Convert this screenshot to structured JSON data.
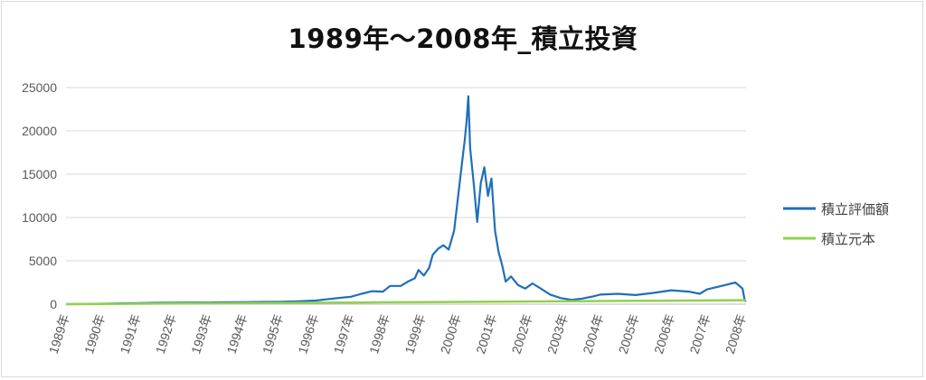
{
  "chart_data": {
    "type": "line",
    "title": "1989年～2008年_積立投資",
    "xlabel": "",
    "ylabel": "",
    "ylim": [
      0,
      25000
    ],
    "yticks": [
      "0",
      "5000",
      "10000",
      "15000",
      "20000",
      "25000"
    ],
    "xlim": [
      1989,
      2008.1
    ],
    "xticks": [
      "1989年",
      "1990年",
      "1991年",
      "1992年",
      "1993年",
      "1994年",
      "1995年",
      "1996年",
      "1997年",
      "1998年",
      "1999年",
      "2000年",
      "2001年",
      "2002年",
      "2003年",
      "2004年",
      "2005年",
      "2006年",
      "2007年",
      "2008年"
    ],
    "grid": true,
    "legend": "right",
    "series": [
      {
        "name": "積立評価額",
        "color": "#1f6fba",
        "points": [
          [
            1989.0,
            0
          ],
          [
            1989.5,
            20
          ],
          [
            1990.0,
            50
          ],
          [
            1990.5,
            90
          ],
          [
            1991.0,
            130
          ],
          [
            1991.5,
            160
          ],
          [
            1992.0,
            180
          ],
          [
            1992.5,
            185
          ],
          [
            1993.0,
            190
          ],
          [
            1993.5,
            215
          ],
          [
            1994.0,
            240
          ],
          [
            1994.5,
            260
          ],
          [
            1995.0,
            270
          ],
          [
            1995.5,
            320
          ],
          [
            1996.0,
            420
          ],
          [
            1996.5,
            650
          ],
          [
            1997.0,
            850
          ],
          [
            1997.3,
            1200
          ],
          [
            1997.6,
            1500
          ],
          [
            1997.9,
            1450
          ],
          [
            1998.1,
            2100
          ],
          [
            1998.4,
            2100
          ],
          [
            1998.6,
            2600
          ],
          [
            1998.8,
            3000
          ],
          [
            1998.9,
            3950
          ],
          [
            1999.05,
            3300
          ],
          [
            1999.2,
            4200
          ],
          [
            1999.3,
            5700
          ],
          [
            1999.45,
            6400
          ],
          [
            1999.6,
            6800
          ],
          [
            1999.75,
            6300
          ],
          [
            1999.9,
            8500
          ],
          [
            2000.0,
            12000
          ],
          [
            2000.1,
            15500
          ],
          [
            2000.2,
            19000
          ],
          [
            2000.25,
            21000
          ],
          [
            2000.3,
            24000
          ],
          [
            2000.35,
            18000
          ],
          [
            2000.45,
            14000
          ],
          [
            2000.55,
            9500
          ],
          [
            2000.65,
            14000
          ],
          [
            2000.75,
            15800
          ],
          [
            2000.85,
            12500
          ],
          [
            2000.95,
            14500
          ],
          [
            2001.05,
            8500
          ],
          [
            2001.15,
            6000
          ],
          [
            2001.25,
            4500
          ],
          [
            2001.35,
            2600
          ],
          [
            2001.5,
            3200
          ],
          [
            2001.7,
            2200
          ],
          [
            2001.9,
            1800
          ],
          [
            2002.1,
            2400
          ],
          [
            2002.3,
            1900
          ],
          [
            2002.6,
            1100
          ],
          [
            2002.9,
            700
          ],
          [
            2003.2,
            500
          ],
          [
            2003.5,
            650
          ],
          [
            2003.8,
            900
          ],
          [
            2004.0,
            1100
          ],
          [
            2004.5,
            1200
          ],
          [
            2005.0,
            1050
          ],
          [
            2005.5,
            1300
          ],
          [
            2006.0,
            1600
          ],
          [
            2006.5,
            1450
          ],
          [
            2006.8,
            1200
          ],
          [
            2007.0,
            1700
          ],
          [
            2007.5,
            2200
          ],
          [
            2007.8,
            2500
          ],
          [
            2008.0,
            1800
          ],
          [
            2008.03,
            1200
          ],
          [
            2008.06,
            500
          ],
          [
            2008.1,
            300
          ]
        ]
      },
      {
        "name": "積立元本",
        "color": "#92d050",
        "points": [
          [
            1989.0,
            0
          ],
          [
            1990.0,
            24
          ],
          [
            1991.0,
            48
          ],
          [
            1992.0,
            72
          ],
          [
            1993.0,
            96
          ],
          [
            1994.0,
            120
          ],
          [
            1995.0,
            144
          ],
          [
            1996.0,
            168
          ],
          [
            1997.0,
            192
          ],
          [
            1998.0,
            216
          ],
          [
            1999.0,
            240
          ],
          [
            2000.0,
            264
          ],
          [
            2001.0,
            288
          ],
          [
            2002.0,
            312
          ],
          [
            2003.0,
            336
          ],
          [
            2004.0,
            360
          ],
          [
            2005.0,
            384
          ],
          [
            2006.0,
            408
          ],
          [
            2007.0,
            432
          ],
          [
            2008.0,
            456
          ],
          [
            2008.1,
            470
          ]
        ]
      }
    ]
  }
}
